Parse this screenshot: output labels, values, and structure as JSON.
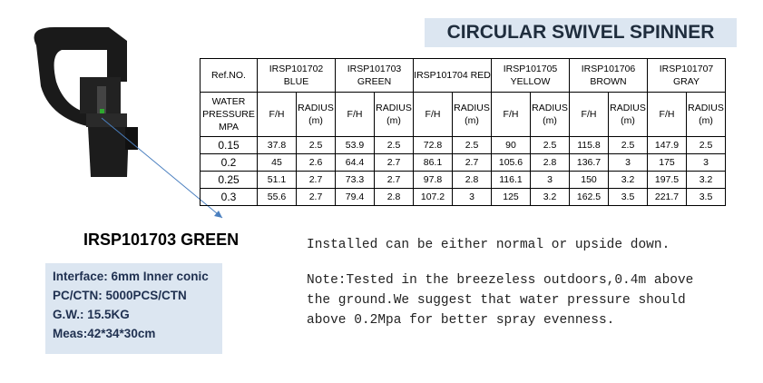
{
  "title": "CIRCULAR SWIVEL SPINNER",
  "table": {
    "columns": [
      "Ref.NO.",
      "IRSP101702 BLUE",
      "IRSP101703 GREEN",
      "IRSP101704 RED",
      "IRSP101705 YELLOW",
      "IRSP101706 BROWN",
      "IRSP101707 GRAY"
    ],
    "subheaders": [
      "WATER PRESSURE MPA",
      "F/H",
      "RADIUS (m)",
      "F/H",
      "RADIUS (m)",
      "F/H",
      "RADIUS (m)",
      "F/H",
      "RADIUS (m)",
      "F/H",
      "RADIUS (m)",
      "F/H",
      "RADIUS (m)"
    ],
    "rows": [
      [
        0.15,
        37.8,
        2.5,
        53.9,
        2.5,
        72.8,
        2.5,
        90,
        2.5,
        115.8,
        2.5,
        147.9,
        2.5
      ],
      [
        0.2,
        45,
        2.6,
        64.4,
        2.7,
        86.1,
        2.7,
        105.6,
        2.8,
        136.7,
        3,
        175,
        3
      ],
      [
        0.25,
        51.1,
        2.7,
        73.3,
        2.7,
        97.8,
        2.8,
        116.1,
        3,
        150,
        3.2,
        197.5,
        3.2
      ],
      [
        0.3,
        55.6,
        2.7,
        79.4,
        2.8,
        107.2,
        3,
        125,
        3.2,
        162.5,
        3.5,
        221.7,
        3.5
      ]
    ]
  },
  "product": {
    "name": "IRSP101703 GREEN",
    "specs": [
      "Interface: 6mm Inner conic",
      "PC/CTN: 5000PCS/CTN",
      "G.W.: 15.5KG",
      "Meas:42*34*30cm"
    ]
  },
  "notes": [
    "Installed can be either normal or upside down.",
    "Note:Tested in the breezeless outdoors,0.4m above the ground.We suggest that water pressure should above 0.2Mpa for better spray evenness."
  ]
}
